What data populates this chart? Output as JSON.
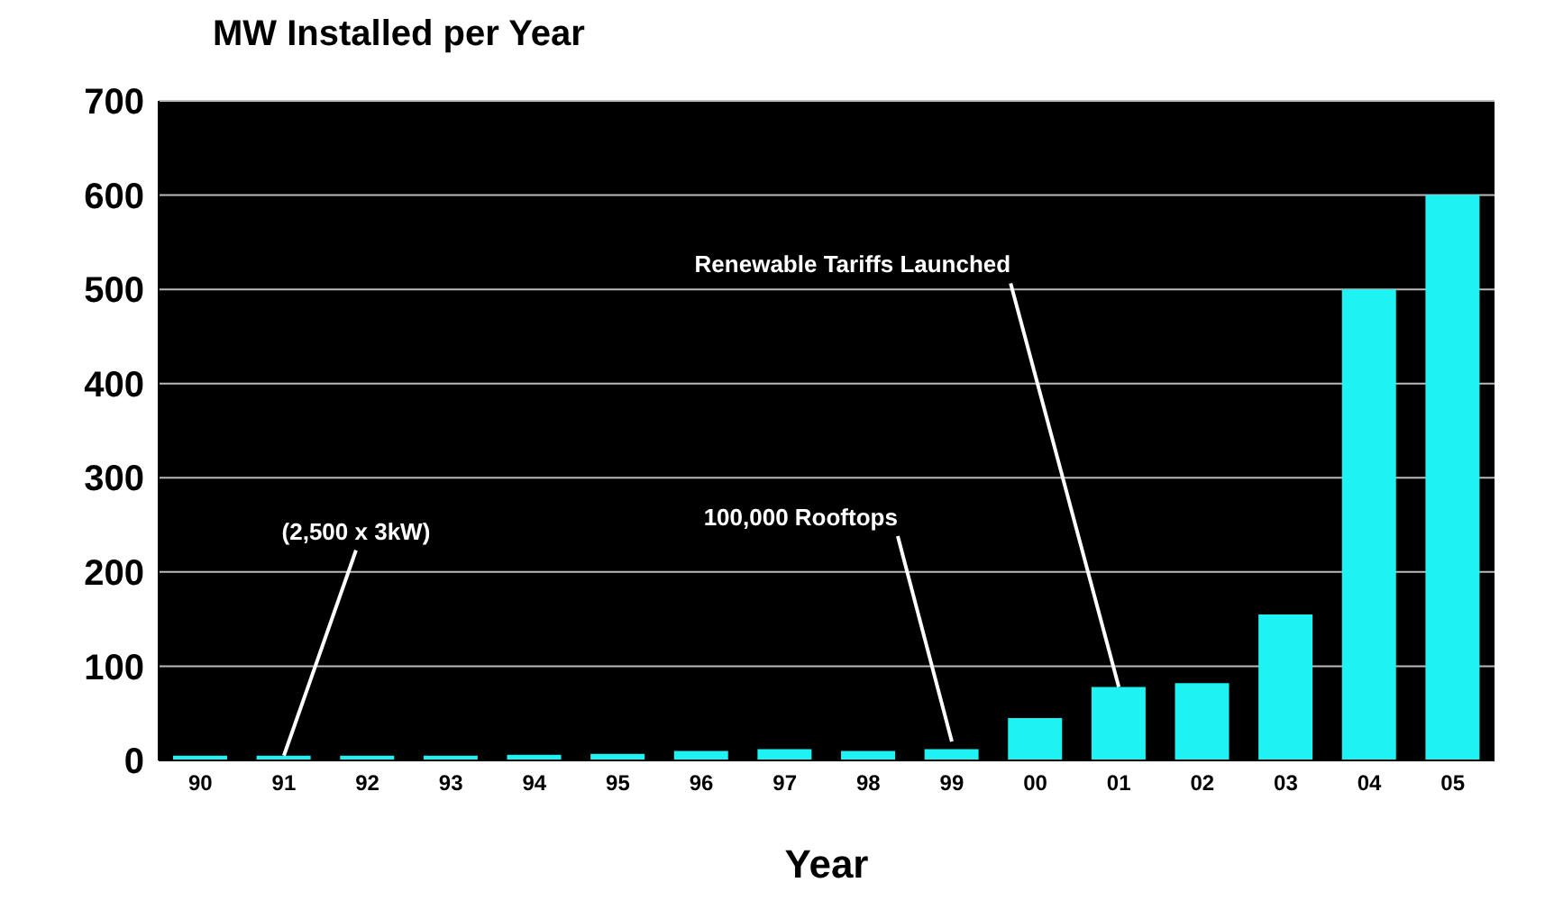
{
  "chart_data": {
    "type": "bar",
    "title": "MW Installed per Year",
    "xlabel": "Year",
    "categories": [
      "90",
      "91",
      "92",
      "93",
      "94",
      "95",
      "96",
      "97",
      "98",
      "99",
      "00",
      "01",
      "02",
      "03",
      "04",
      "05"
    ],
    "values": [
      5,
      5,
      5,
      5,
      6,
      7,
      10,
      12,
      10,
      12,
      45,
      78,
      82,
      155,
      500,
      600
    ],
    "color": "#1ef2f2",
    "ylim": [
      0,
      700
    ],
    "yticks": [
      0,
      100,
      200,
      300,
      400,
      500,
      600,
      700
    ],
    "grid": "y",
    "annotations": [
      {
        "text": "(2,500 x 3kW)",
        "x": "91",
        "y": 5
      },
      {
        "text": "100,000 Rooftops",
        "x": "99",
        "y": 20
      },
      {
        "text": "Renewable Tariffs Launched",
        "x": "01",
        "y": 78
      }
    ]
  }
}
